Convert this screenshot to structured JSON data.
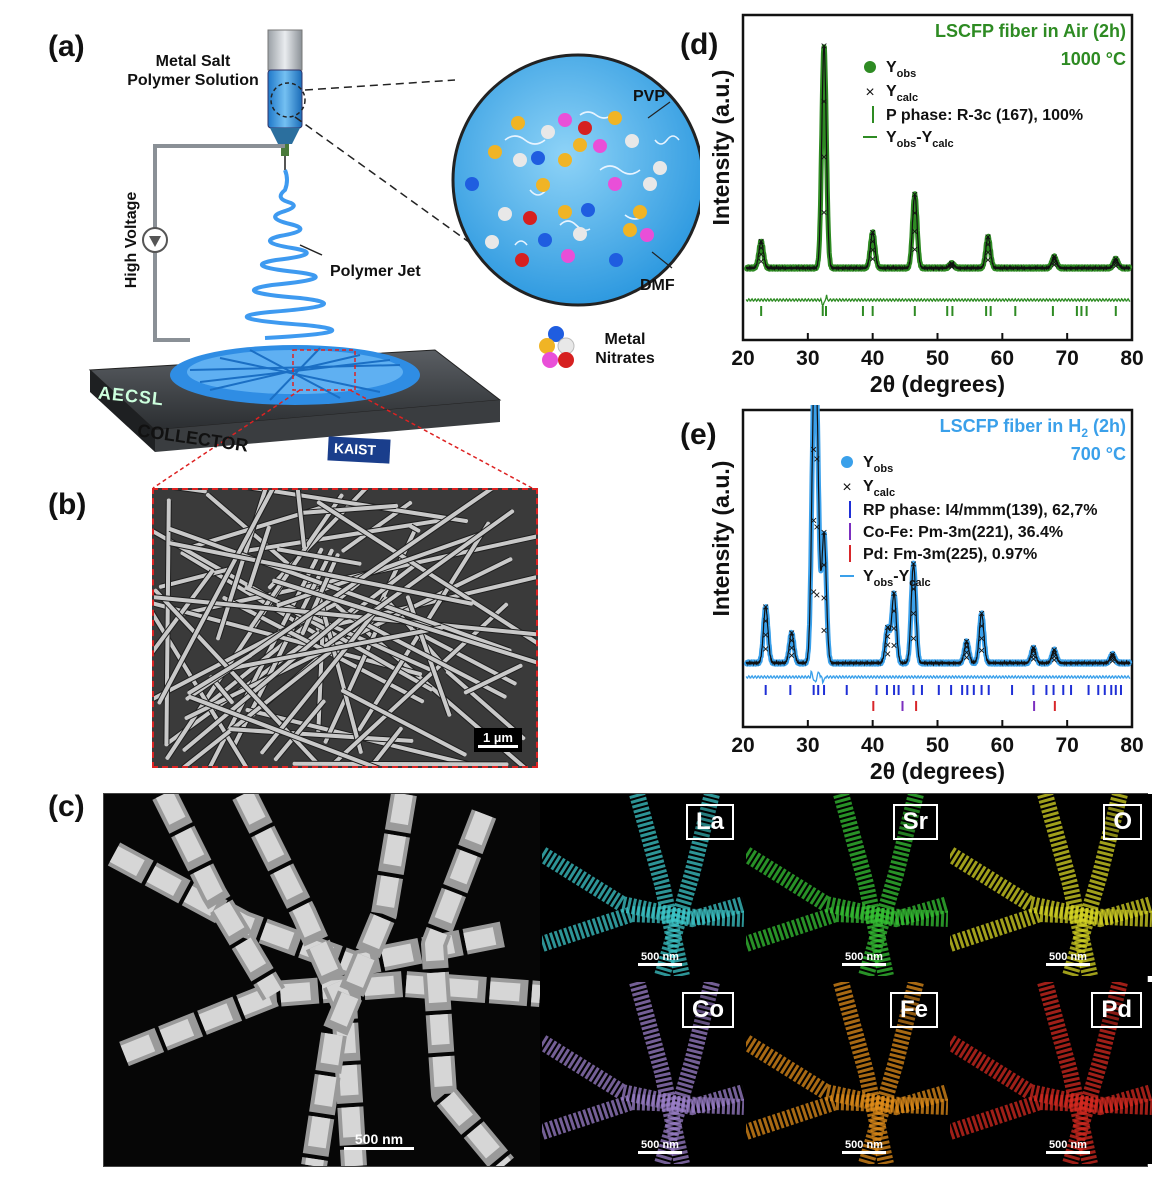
{
  "panel_a": {
    "label": "(a)",
    "metal_salt_line1": "Metal Salt",
    "metal_salt_line2": "Polymer Solution",
    "pvp": "PVP",
    "dmf": "DMF",
    "high_voltage": "High Voltage",
    "polymer_jet": "Polymer Jet",
    "metal_nitrates_line1": "Metal",
    "metal_nitrates_line2": "Nitrates",
    "collector": "COLLECTOR",
    "logo_aecsl": "AECSL",
    "logo_kaist": "KAIST",
    "colors": {
      "fiber": "#2f8de4",
      "syringe": "#4aa3e8",
      "drop_bg": "#5cb6ee"
    }
  },
  "panel_b": {
    "label": "(b)",
    "scale_bar": "1 µm"
  },
  "panel_c": {
    "label": "(c)",
    "main_scale": "500 nm",
    "maps": [
      {
        "element": "La",
        "scale": "500 nm",
        "color": "#3cc6c8"
      },
      {
        "element": "Sr",
        "scale": "500 nm",
        "color": "#35c234"
      },
      {
        "element": "O",
        "scale": "500 nm",
        "color": "#d6d424"
      },
      {
        "element": "Co",
        "scale": "500 nm",
        "color": "#9b7fc8"
      },
      {
        "element": "Fe",
        "scale": "500 nm",
        "color": "#e08c1a"
      },
      {
        "element": "Pd",
        "scale": "500 nm",
        "color": "#d42a20"
      }
    ]
  },
  "chart_data": [
    {
      "type": "line",
      "panel": "(d)",
      "title": "LSCFP fiber in Air (2h)",
      "subtitle": "1000 °C",
      "xlabel": "2θ (degrees)",
      "ylabel": "Intensity (a.u.)",
      "xlim": [
        20,
        80
      ],
      "xticks": [
        20,
        30,
        40,
        50,
        60,
        70,
        80
      ],
      "accent": "#2e8b23",
      "legend": [
        {
          "marker": "dot",
          "main": "Y",
          "sub": "obs",
          "rest": ""
        },
        {
          "marker": "x",
          "main": "Y",
          "sub": "calc",
          "rest": ""
        },
        {
          "marker": "bar",
          "main": "P phase: R-3c (167), 100%",
          "sub": "",
          "rest": ""
        },
        {
          "marker": "line",
          "main": "Y",
          "sub": "obs",
          "rest": "-Y",
          "sub2": "calc"
        }
      ],
      "peaks": [
        {
          "x": 22.8,
          "h": 0.12
        },
        {
          "x": 32.5,
          "h": 1.0
        },
        {
          "x": 40.0,
          "h": 0.16
        },
        {
          "x": 46.5,
          "h": 0.33
        },
        {
          "x": 52.2,
          "h": 0.02
        },
        {
          "x": 57.8,
          "h": 0.14
        },
        {
          "x": 68.0,
          "h": 0.05
        },
        {
          "x": 77.5,
          "h": 0.04
        }
      ],
      "reflections": [
        {
          "series": "P phase",
          "color": "#2e8b23",
          "x": [
            22.8,
            32.3,
            32.8,
            38.5,
            40.0,
            46.5,
            51.5,
            52.3,
            57.5,
            58.2,
            62.0,
            67.8,
            71.5,
            72.2,
            73.0,
            77.5
          ]
        }
      ]
    },
    {
      "type": "line",
      "panel": "(e)",
      "title": "LSCFP fiber in H",
      "title_sub": "2",
      "title_rest": " (2h)",
      "subtitle": "700 °C",
      "xlabel": "2θ (degrees)",
      "ylabel": "Intensity (a.u.)",
      "xlim": [
        20,
        80
      ],
      "xticks": [
        20,
        30,
        40,
        50,
        60,
        70,
        80
      ],
      "accent": "#3aa0ea",
      "legend": [
        {
          "marker": "dot",
          "main": "Y",
          "sub": "obs",
          "rest": ""
        },
        {
          "marker": "x",
          "main": "Y",
          "sub": "calc",
          "rest": ""
        },
        {
          "marker": "bar",
          "color": "#1f2fd6",
          "main": "RP phase: I4/mmm(139), 62,7%",
          "sub": "",
          "rest": ""
        },
        {
          "marker": "bar",
          "color": "#7b2fbf",
          "main": "Co-Fe: Pm-3m(221), 36.4%",
          "sub": "",
          "rest": ""
        },
        {
          "marker": "bar",
          "color": "#d8262a",
          "main": "Pd: Fm-3m(225), 0.97%",
          "sub": "",
          "rest": ""
        },
        {
          "marker": "line",
          "main": "Y",
          "sub": "obs",
          "rest": "-Y",
          "sub2": "calc"
        }
      ],
      "peaks": [
        {
          "x": 23.5,
          "h": 0.26
        },
        {
          "x": 27.5,
          "h": 0.14
        },
        {
          "x": 30.9,
          "h": 1.0
        },
        {
          "x": 31.4,
          "h": 0.9
        },
        {
          "x": 32.5,
          "h": 0.6
        },
        {
          "x": 42.3,
          "h": 0.16
        },
        {
          "x": 43.3,
          "h": 0.32
        },
        {
          "x": 46.3,
          "h": 0.46
        },
        {
          "x": 54.5,
          "h": 0.1
        },
        {
          "x": 56.8,
          "h": 0.23
        },
        {
          "x": 64.8,
          "h": 0.07
        },
        {
          "x": 68.0,
          "h": 0.06
        },
        {
          "x": 77.0,
          "h": 0.04
        }
      ],
      "reflections": [
        {
          "series": "RP phase",
          "color": "#1f2fd6",
          "row": 0,
          "x": [
            23.5,
            27.3,
            30.9,
            31.6,
            32.5,
            36.0,
            40.6,
            42.2,
            43.3,
            44.0,
            46.3,
            47.6,
            50.2,
            52.1,
            53.8,
            54.6,
            55.6,
            56.8,
            57.9,
            61.5,
            64.8,
            66.8,
            67.9,
            69.4,
            70.6,
            73.3,
            74.8,
            75.8,
            76.8,
            77.5,
            78.3
          ]
        },
        {
          "series": "Co-Fe",
          "color": "#7b2fbf",
          "row": 1,
          "x": [
            44.6,
            64.9
          ]
        },
        {
          "series": "Pd",
          "color": "#d8262a",
          "row": 1,
          "x": [
            40.1,
            46.7,
            68.1
          ]
        }
      ]
    }
  ]
}
